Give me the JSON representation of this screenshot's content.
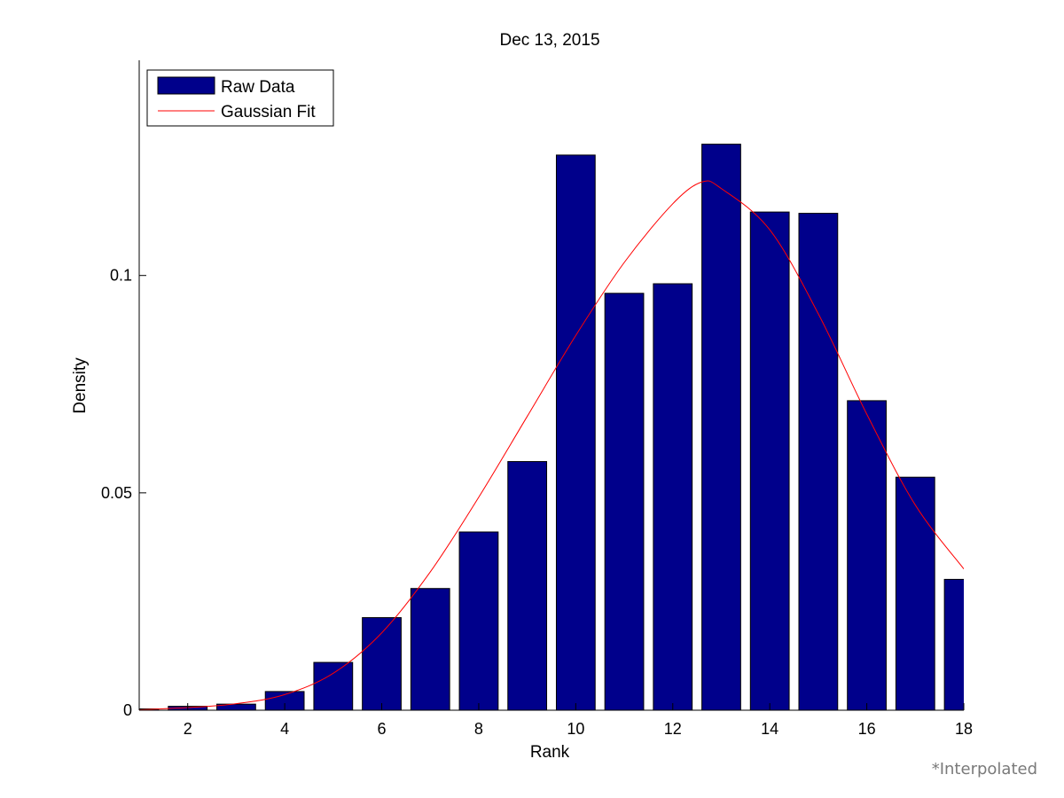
{
  "chart_data": {
    "type": "bar",
    "title": "Dec 13, 2015",
    "xlabel": "Rank",
    "ylabel": "Density",
    "xlim": [
      1,
      18
    ],
    "ylim": [
      0,
      0.1495
    ],
    "xticks": [
      2,
      4,
      6,
      8,
      10,
      12,
      14,
      16,
      18
    ],
    "yticks": [
      0,
      0.05,
      0.1
    ],
    "ytick_labels": [
      "0",
      "0.05",
      "0.1"
    ],
    "grid": false,
    "legend_position": "top-left",
    "series": [
      {
        "name": "Raw Data",
        "kind": "bar",
        "color": "#00008B",
        "x": [
          1,
          2,
          3,
          4,
          5,
          6,
          7,
          8,
          9,
          10,
          11,
          12,
          13,
          14,
          15,
          16,
          17,
          18
        ],
        "values": [
          0.0003,
          0.0009,
          0.0014,
          0.0043,
          0.011,
          0.0213,
          0.028,
          0.041,
          0.0572,
          0.1277,
          0.0959,
          0.0981,
          0.1302,
          0.1146,
          0.1143,
          0.0712,
          0.0536,
          0.0301
        ]
      },
      {
        "name": "Gaussian Fit",
        "kind": "line",
        "color": "#FF0000",
        "x": [
          1,
          2,
          3,
          4,
          5,
          6,
          7,
          8,
          9,
          10,
          11,
          12,
          12.6,
          13,
          14,
          15,
          16,
          17,
          18
        ],
        "values": [
          0.0001,
          0.0006,
          0.0015,
          0.0036,
          0.0085,
          0.0178,
          0.0318,
          0.049,
          0.0676,
          0.0862,
          0.103,
          0.1165,
          0.1215,
          0.12,
          0.1105,
          0.0912,
          0.0681,
          0.0472,
          0.0325
        ]
      }
    ]
  },
  "footnote": "*Interpolated"
}
